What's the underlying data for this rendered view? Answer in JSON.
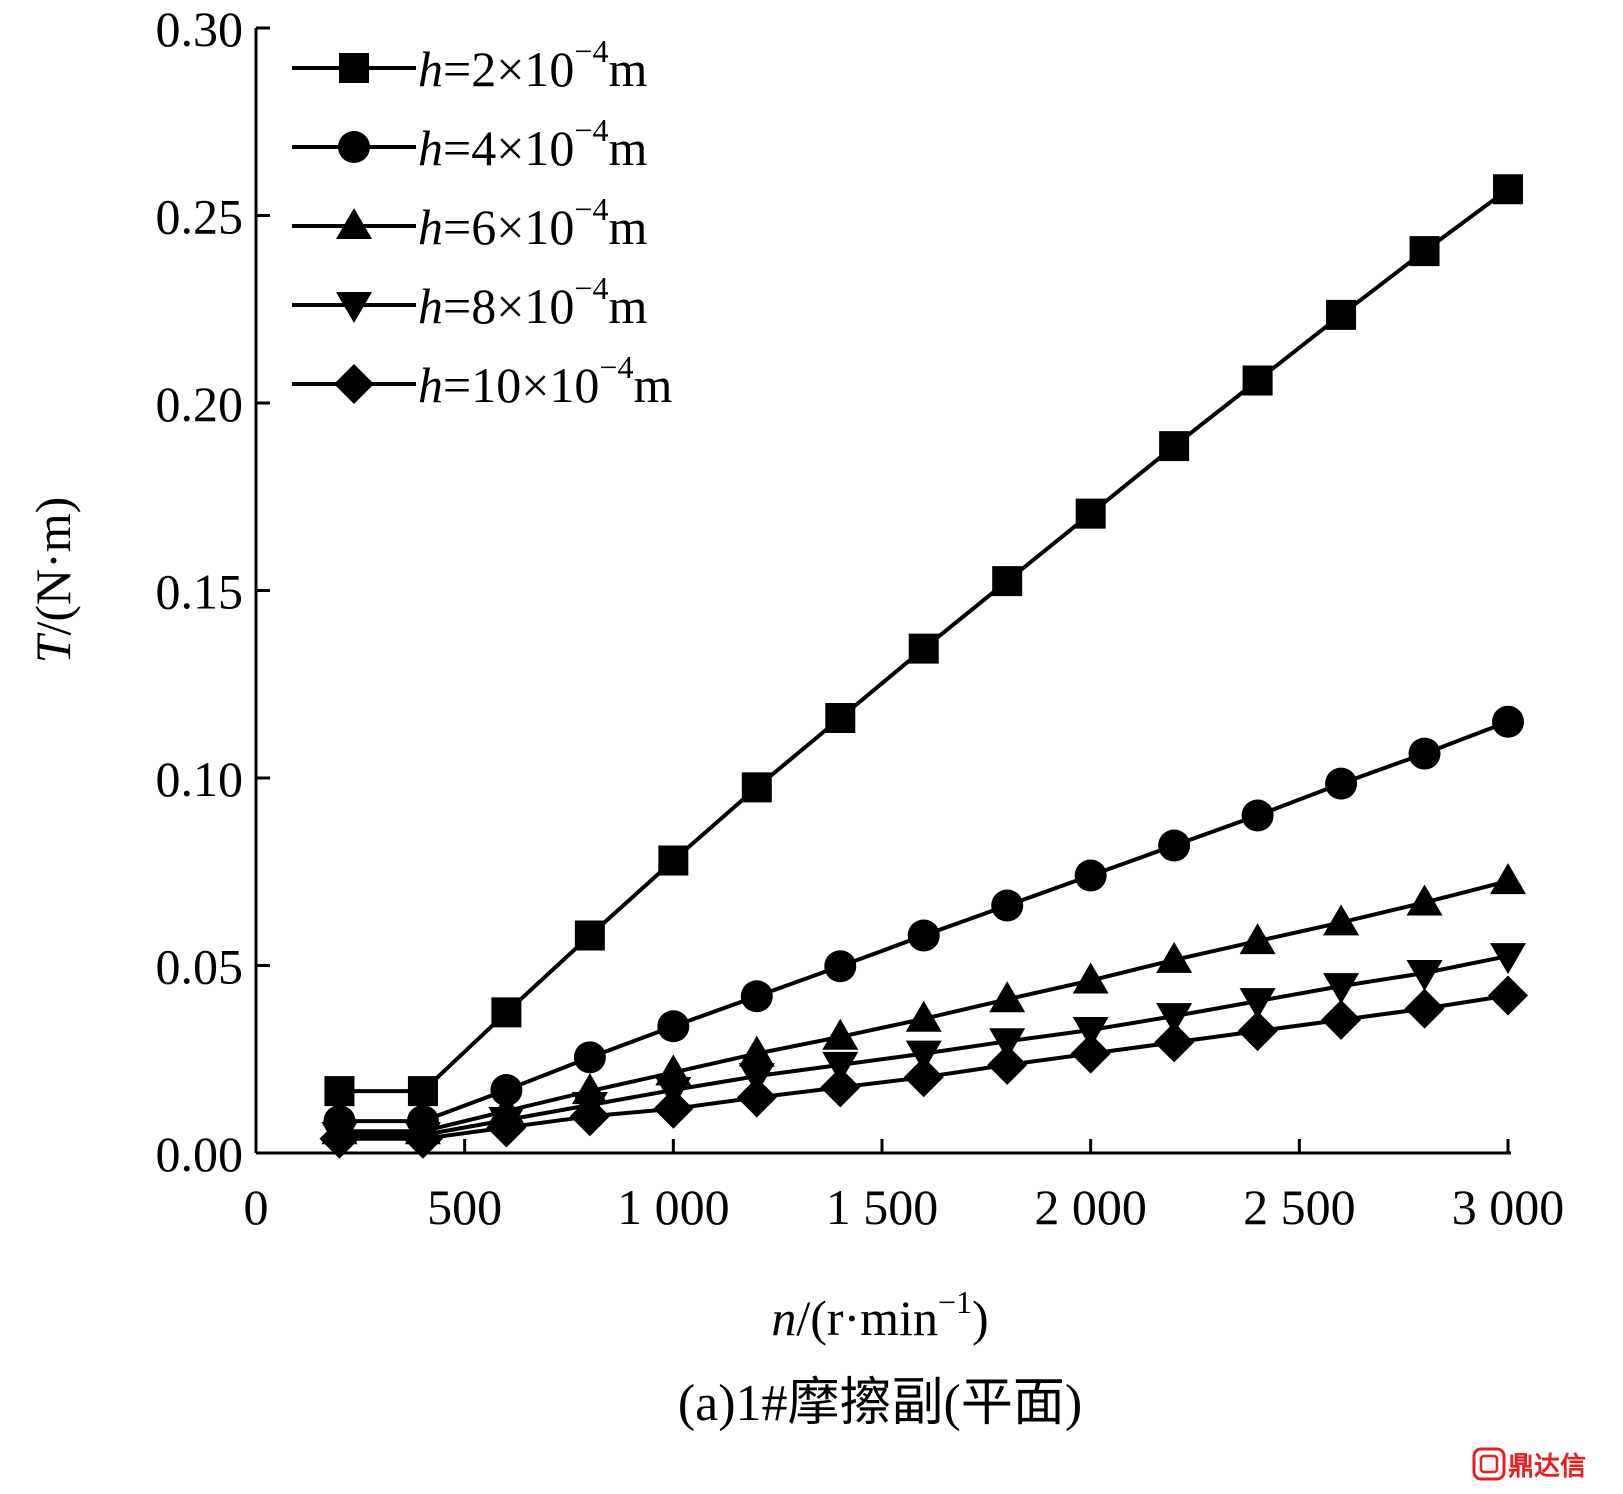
{
  "chart_data": {
    "type": "line",
    "xlabel": {
      "var": "n",
      "rest": "/(r·min",
      "sup": "−1",
      "close": ")"
    },
    "ylabel": {
      "var": "T",
      "rest": "/(N·m)"
    },
    "caption": "(a)1#摩擦副(平面)",
    "xlim": [
      0,
      3000
    ],
    "ylim": [
      0,
      0.3
    ],
    "xticks": [
      0,
      500,
      1000,
      1500,
      2000,
      2500,
      3000
    ],
    "xtick_labels": [
      "0",
      "500",
      "1 000",
      "1 500",
      "2 000",
      "2 500",
      "3 000"
    ],
    "yticks": [
      0,
      0.05,
      0.1,
      0.15,
      0.2,
      0.25,
      0.3
    ],
    "ytick_labels": [
      "0.00",
      "0.05",
      "0.10",
      "0.15",
      "0.20",
      "0.25",
      "0.30"
    ],
    "legend_position": "top-left",
    "x": [
      200,
      400,
      600,
      800,
      1000,
      1200,
      1400,
      1600,
      1800,
      2000,
      2200,
      2400,
      2600,
      2800,
      3000
    ],
    "series": [
      {
        "name": "h=2×10−4m",
        "label": {
          "var": "h",
          "mid": "=2×10",
          "sup": "−4",
          "unit": "m"
        },
        "marker": "square",
        "values": [
          0.0165,
          0.0165,
          0.0375,
          0.058,
          0.078,
          0.0975,
          0.116,
          0.1345,
          0.1525,
          0.1705,
          0.1885,
          0.206,
          0.2235,
          0.2405,
          0.257
        ]
      },
      {
        "name": "h=4×10−4m",
        "label": {
          "var": "h",
          "mid": "=4×10",
          "sup": "−4",
          "unit": "m"
        },
        "marker": "circle",
        "values": [
          0.0085,
          0.0085,
          0.0168,
          0.0255,
          0.0338,
          0.0418,
          0.0498,
          0.058,
          0.066,
          0.074,
          0.082,
          0.09,
          0.0985,
          0.1065,
          0.115
        ]
      },
      {
        "name": "h=6×10−4m",
        "label": {
          "var": "h",
          "mid": "=6×10",
          "sup": "−4",
          "unit": "m"
        },
        "marker": "triangle-up",
        "values": [
          0.0058,
          0.0058,
          0.0112,
          0.0165,
          0.0215,
          0.0265,
          0.031,
          0.0358,
          0.041,
          0.046,
          0.0515,
          0.0565,
          0.0615,
          0.0668,
          0.0725
        ]
      },
      {
        "name": "h=8×10−4m",
        "label": {
          "var": "h",
          "mid": "=8×10",
          "sup": "−4",
          "unit": "m"
        },
        "marker": "triangle-down",
        "values": [
          0.0048,
          0.0048,
          0.0088,
          0.0128,
          0.0168,
          0.0205,
          0.0235,
          0.0265,
          0.0298,
          0.0328,
          0.0365,
          0.0405,
          0.0445,
          0.048,
          0.0525
        ]
      },
      {
        "name": "h=10×10−4m",
        "label": {
          "var": "h",
          "mid": "=10×10",
          "sup": "−4",
          "unit": "m"
        },
        "marker": "diamond",
        "values": [
          0.0038,
          0.0038,
          0.0068,
          0.0098,
          0.0118,
          0.0148,
          0.0175,
          0.0202,
          0.0235,
          0.0265,
          0.0295,
          0.0325,
          0.0355,
          0.0385,
          0.042
        ]
      }
    ]
  },
  "watermark": {
    "text": "鼎达信",
    "icon": "nested-square-logo-icon",
    "color": "#e32020"
  }
}
